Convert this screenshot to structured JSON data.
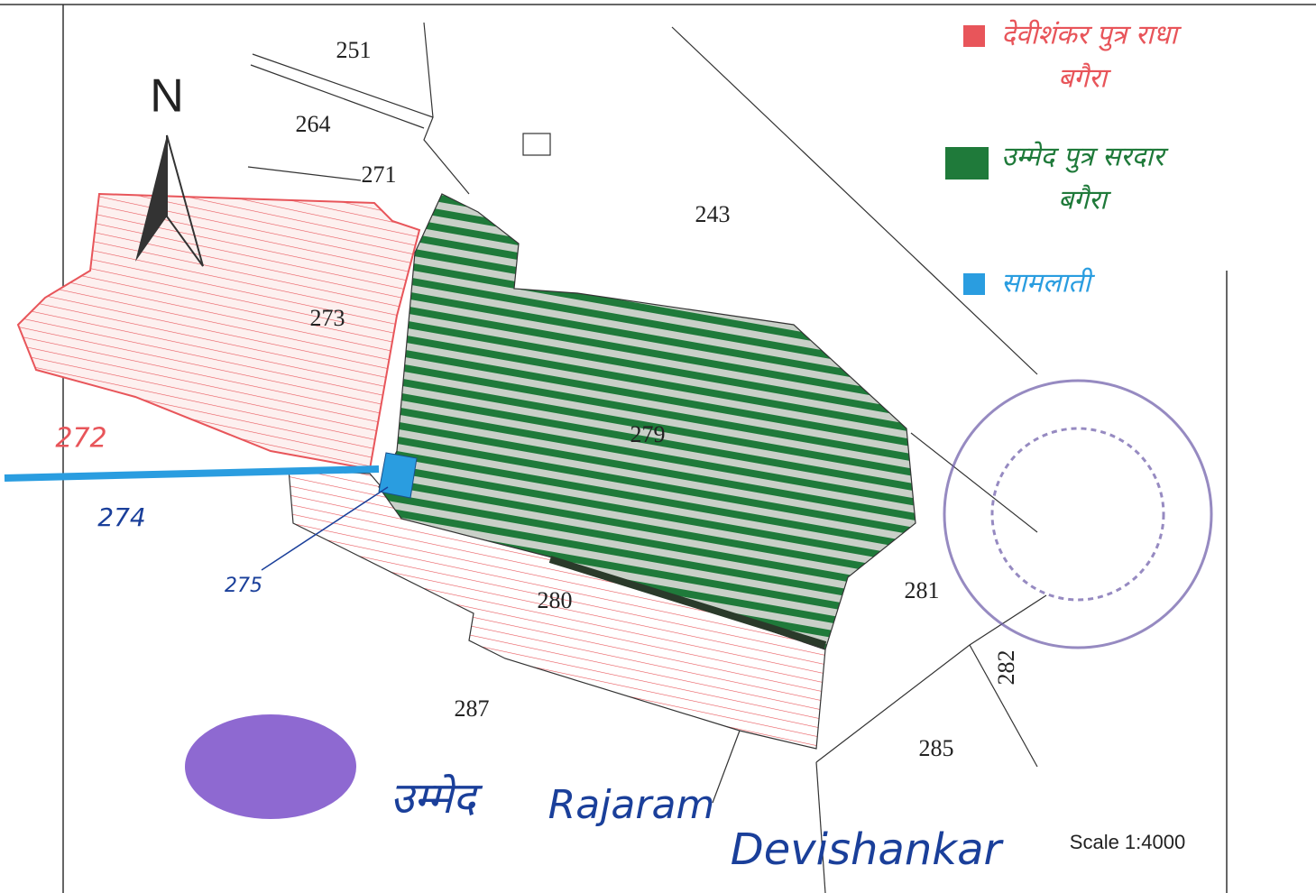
{
  "map": {
    "north": "N",
    "scale": "Scale 1:4000",
    "parcels": [
      {
        "label": "251"
      },
      {
        "label": "264"
      },
      {
        "label": "271"
      },
      {
        "label": "243"
      },
      {
        "label": "273"
      },
      {
        "label": "279"
      },
      {
        "label": "280"
      },
      {
        "label": "281"
      },
      {
        "label": "282"
      },
      {
        "label": "287"
      },
      {
        "label": "285"
      }
    ],
    "legend": [
      {
        "label": "देवीशंकर पुत्र राधा",
        "label2": "बगैरा",
        "color": "#e8555a"
      },
      {
        "label": "उम्मेद पुत्र सरदार",
        "label2": "बगैरा",
        "color": "#1f7a3a"
      },
      {
        "label": "सामलाती",
        "color": "#2a9de0"
      }
    ],
    "annotations": [
      {
        "label": "272"
      },
      {
        "label": "274"
      },
      {
        "label": "275"
      },
      {
        "label": "उम्मेद"
      },
      {
        "label": "Rajaram"
      },
      {
        "label": "Devishankar"
      }
    ]
  }
}
